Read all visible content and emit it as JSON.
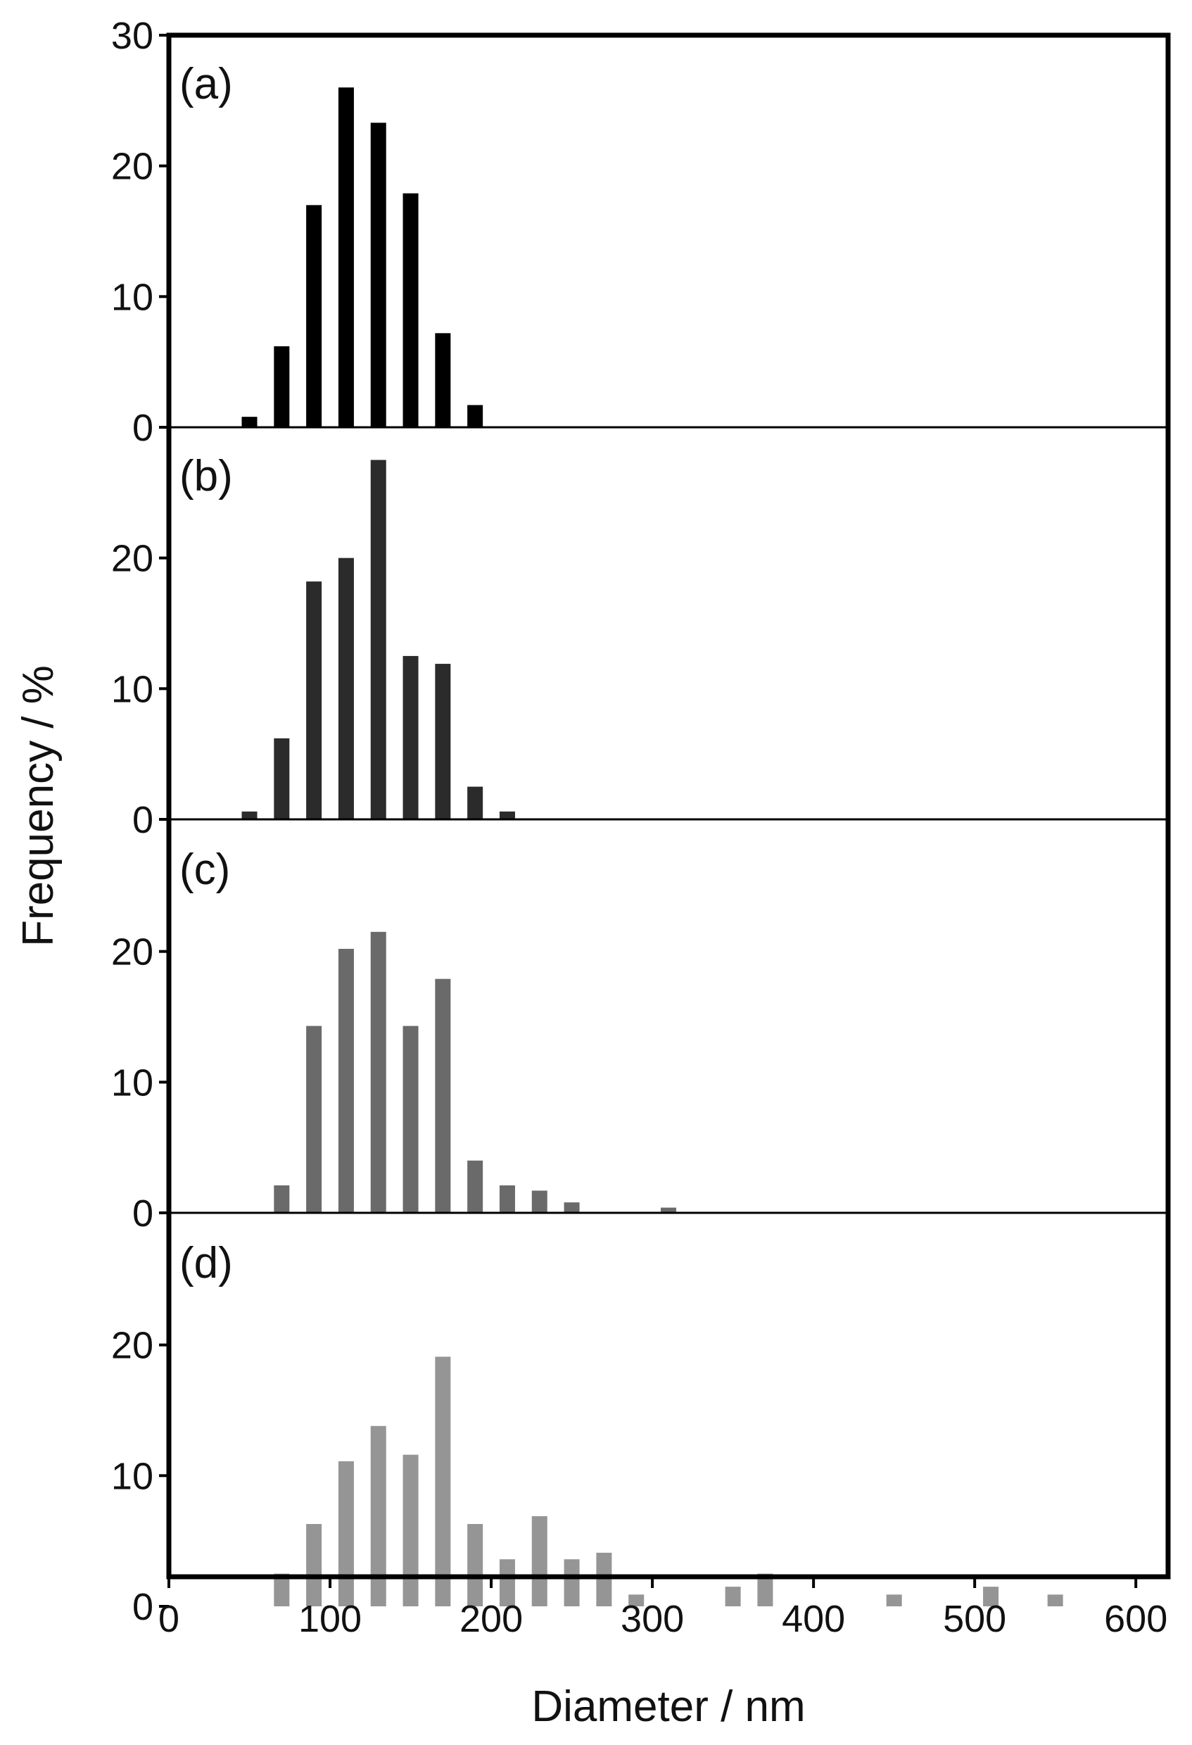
{
  "chart_data": {
    "type": "bar",
    "xlabel": "Diameter / nm",
    "ylabel": "Frequency / %",
    "xlim": [
      0,
      620
    ],
    "x_ticks": [
      0,
      100,
      200,
      300,
      400,
      500,
      600
    ],
    "y_tick_labels": [
      [
        "30",
        "20",
        "10",
        "0"
      ],
      [
        "20",
        "10",
        "0"
      ],
      [
        "20",
        "10",
        "0"
      ],
      [
        "20",
        "10",
        "0"
      ]
    ],
    "panels": [
      {
        "label": "(a)",
        "color": "#000000",
        "ylim": [
          0,
          30
        ],
        "bins": [
          50,
          70,
          90,
          110,
          130,
          150,
          170,
          190
        ],
        "values": [
          0.8,
          6.2,
          17.0,
          26.0,
          23.3,
          17.9,
          7.2,
          1.7
        ]
      },
      {
        "label": "(b)",
        "color": "#2b2b2b",
        "ylim": [
          0,
          30
        ],
        "bins": [
          50,
          70,
          90,
          110,
          130,
          150,
          170,
          190,
          210
        ],
        "values": [
          0.6,
          6.2,
          18.2,
          20.0,
          27.5,
          12.5,
          11.9,
          2.5,
          0.6
        ]
      },
      {
        "label": "(c)",
        "color": "#6a6a6a",
        "ylim": [
          0,
          30
        ],
        "bins": [
          70,
          90,
          110,
          130,
          150,
          170,
          190,
          210,
          230,
          250,
          310
        ],
        "values": [
          2.1,
          14.3,
          20.2,
          21.5,
          14.3,
          17.9,
          4.0,
          2.1,
          1.7,
          0.8,
          0.4
        ]
      },
      {
        "label": "(d)",
        "color": "#959595",
        "ylim": [
          0,
          30
        ],
        "bins": [
          70,
          90,
          110,
          130,
          150,
          170,
          190,
          210,
          230,
          250,
          270,
          290,
          350,
          370,
          450,
          510,
          550
        ],
        "values": [
          2.5,
          6.3,
          11.1,
          13.8,
          11.6,
          19.1,
          6.3,
          3.6,
          6.9,
          3.6,
          4.1,
          0.9,
          1.5,
          2.5,
          0.9,
          1.5,
          0.9
        ]
      }
    ]
  }
}
